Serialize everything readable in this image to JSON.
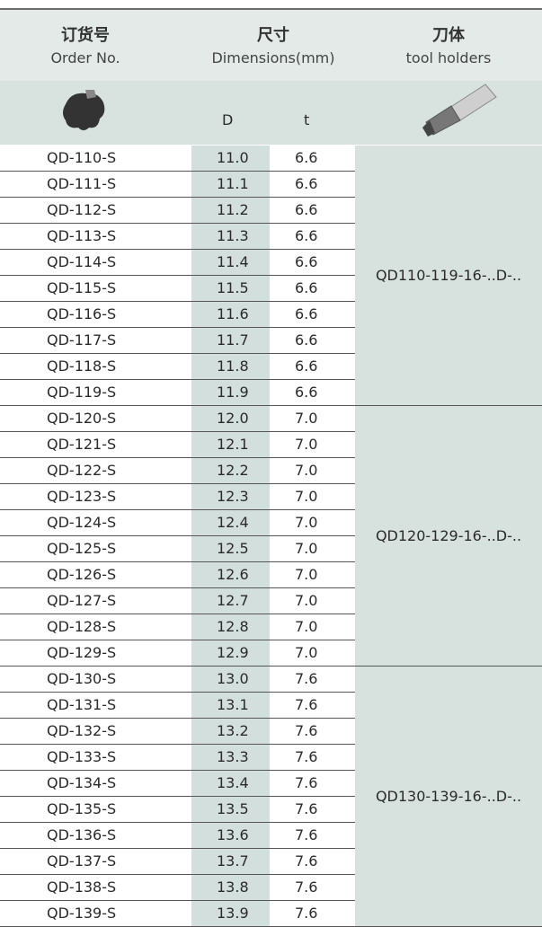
{
  "header": {
    "order_no": {
      "zh": "订货号",
      "en": "Order No."
    },
    "dimensions": {
      "zh": "尺寸",
      "en": "Dimensions(mm)"
    },
    "holder": {
      "zh": "刀体",
      "en": "tool holders"
    }
  },
  "subheader": {
    "d": "D",
    "t": "t"
  },
  "groups": [
    {
      "holder": "QD110-119-16-..D-..",
      "rows": [
        [
          "QD-110-S",
          "11.0",
          "6.6"
        ],
        [
          "QD-111-S",
          "11.1",
          "6.6"
        ],
        [
          "QD-112-S",
          "11.2",
          "6.6"
        ],
        [
          "QD-113-S",
          "11.3",
          "6.6"
        ],
        [
          "QD-114-S",
          "11.4",
          "6.6"
        ],
        [
          "QD-115-S",
          "11.5",
          "6.6"
        ],
        [
          "QD-116-S",
          "11.6",
          "6.6"
        ],
        [
          "QD-117-S",
          "11.7",
          "6.6"
        ],
        [
          "QD-118-S",
          "11.8",
          "6.6"
        ],
        [
          "QD-119-S",
          "11.9",
          "6.6"
        ]
      ]
    },
    {
      "holder": "QD120-129-16-..D-..",
      "rows": [
        [
          "QD-120-S",
          "12.0",
          "7.0"
        ],
        [
          "QD-121-S",
          "12.1",
          "7.0"
        ],
        [
          "QD-122-S",
          "12.2",
          "7.0"
        ],
        [
          "QD-123-S",
          "12.3",
          "7.0"
        ],
        [
          "QD-124-S",
          "12.4",
          "7.0"
        ],
        [
          "QD-125-S",
          "12.5",
          "7.0"
        ],
        [
          "QD-126-S",
          "12.6",
          "7.0"
        ],
        [
          "QD-127-S",
          "12.7",
          "7.0"
        ],
        [
          "QD-128-S",
          "12.8",
          "7.0"
        ],
        [
          "QD-129-S",
          "12.9",
          "7.0"
        ]
      ]
    },
    {
      "holder": "QD130-139-16-..D-..",
      "rows": [
        [
          "QD-130-S",
          "13.0",
          "7.6"
        ],
        [
          "QD-131-S",
          "13.1",
          "7.6"
        ],
        [
          "QD-132-S",
          "13.2",
          "7.6"
        ],
        [
          "QD-133-S",
          "13.3",
          "7.6"
        ],
        [
          "QD-134-S",
          "13.4",
          "7.6"
        ],
        [
          "QD-135-S",
          "13.5",
          "7.6"
        ],
        [
          "QD-136-S",
          "13.6",
          "7.6"
        ],
        [
          "QD-137-S",
          "13.7",
          "7.6"
        ],
        [
          "QD-138-S",
          "13.8",
          "7.6"
        ],
        [
          "QD-139-S",
          "13.9",
          "7.6"
        ]
      ]
    }
  ]
}
